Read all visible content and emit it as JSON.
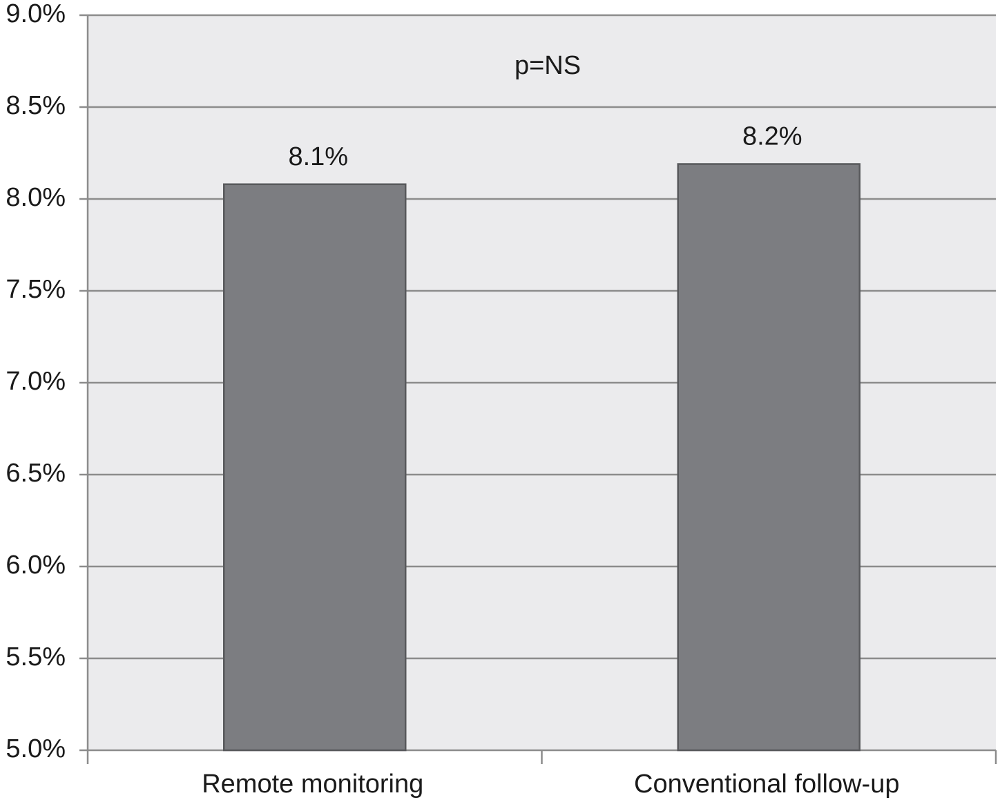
{
  "chart_data": {
    "type": "bar",
    "annotation": "p=NS",
    "categories": [
      "Remote monitoring",
      "Conventional follow-up"
    ],
    "values": [
      8.08,
      8.19
    ],
    "value_labels": [
      "8.1%",
      "8.2%"
    ],
    "color": "#7c7d81",
    "ylim": [
      5,
      9
    ],
    "yticks": [
      {
        "value": 5,
        "label": "5.0%"
      },
      {
        "value": 5.5,
        "label": "5.5%"
      },
      {
        "value": 6,
        "label": "6.0%"
      },
      {
        "value": 6.5,
        "label": "6.5%"
      },
      {
        "value": 7,
        "label": "7.0%"
      },
      {
        "value": 7.5,
        "label": "7.5%"
      },
      {
        "value": 8,
        "label": "8.0%"
      },
      {
        "value": 8.5,
        "label": "8.5%"
      },
      {
        "value": 9,
        "label": "9.0%"
      }
    ],
    "grid": true
  }
}
